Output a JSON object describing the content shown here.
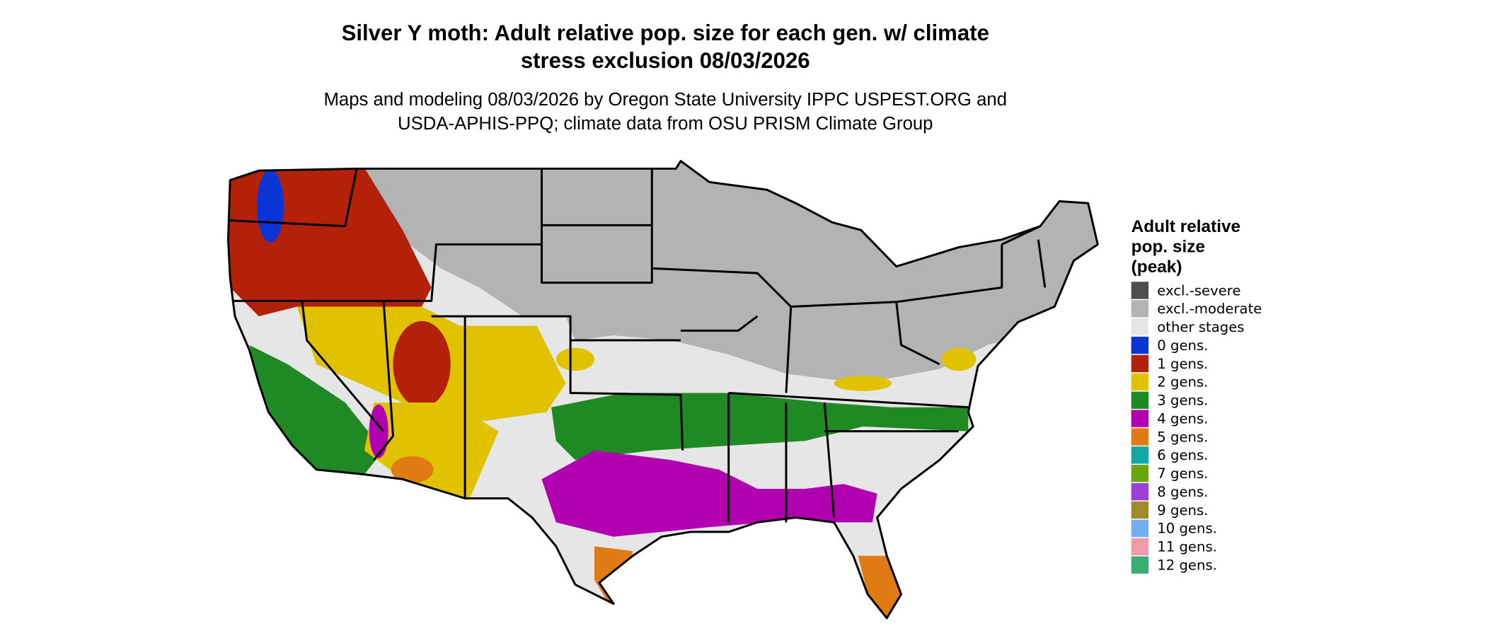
{
  "title_lines": [
    "Silver Y moth: Adult relative pop. size for each gen. w/ climate",
    "stress exclusion 08/03/2026"
  ],
  "subtitle_lines": [
    "Maps and modeling 08/03/2026 by Oregon State University IPPC USPEST.ORG and",
    "USDA-APHIS-PPQ; climate data from OSU PRISM Climate Group"
  ],
  "legend": {
    "title_lines": [
      "Adult relative",
      "pop. size",
      "(peak)"
    ],
    "items": [
      {
        "label": "excl.-severe",
        "color": "#4d4d4d"
      },
      {
        "label": "excl.-moderate",
        "color": "#b3b3b3"
      },
      {
        "label": "other stages",
        "color": "#e6e6e6"
      },
      {
        "label": "0 gens.",
        "color": "#0a35d6"
      },
      {
        "label": "1 gens.",
        "color": "#b3210a"
      },
      {
        "label": "2 gens.",
        "color": "#e0c200"
      },
      {
        "label": "3 gens.",
        "color": "#1f8a24"
      },
      {
        "label": "4 gens.",
        "color": "#b000b0"
      },
      {
        "label": "5 gens.",
        "color": "#e07a12"
      },
      {
        "label": "6 gens.",
        "color": "#12a8a8"
      },
      {
        "label": "7 gens.",
        "color": "#6aa612"
      },
      {
        "label": "8 gens.",
        "color": "#9a3fd8"
      },
      {
        "label": "9 gens.",
        "color": "#a08a2a"
      },
      {
        "label": "10 gens.",
        "color": "#72aef0"
      },
      {
        "label": "11 gens.",
        "color": "#f09aaa"
      },
      {
        "label": "12 gens.",
        "color": "#38ae70"
      }
    ]
  }
}
